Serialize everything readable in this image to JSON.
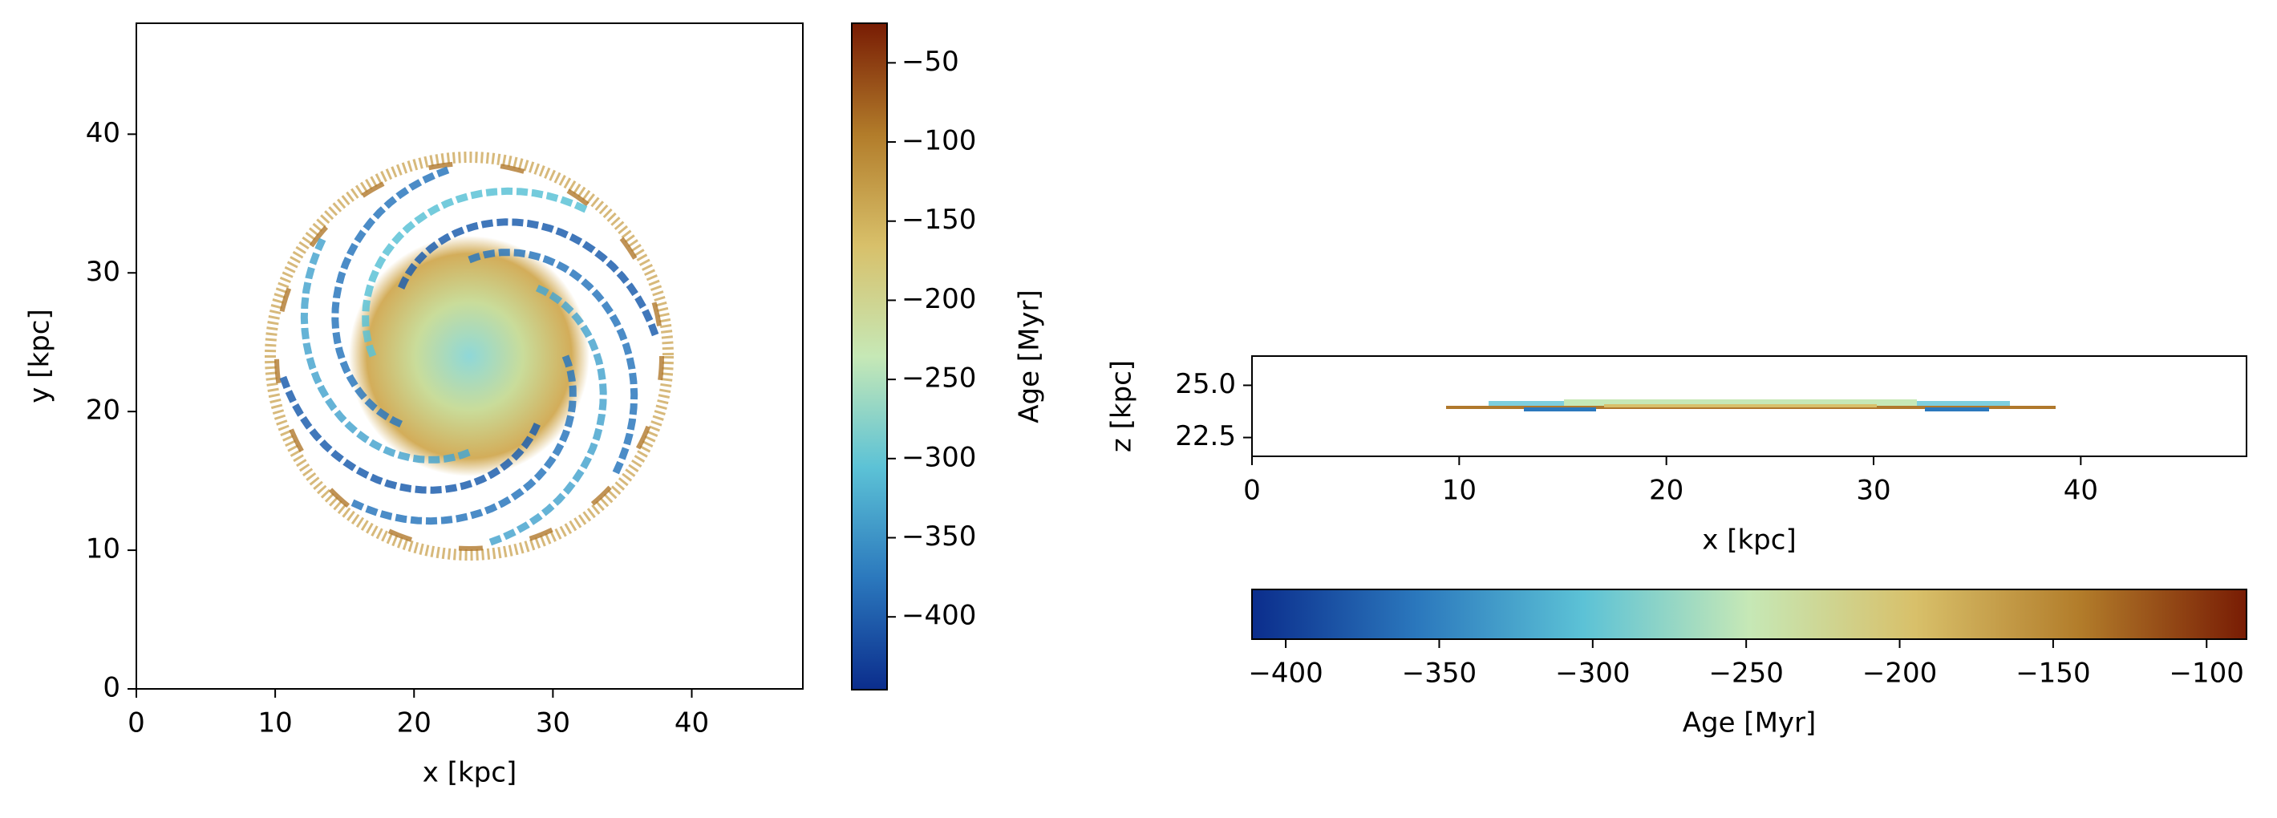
{
  "chart_data": [
    {
      "type": "image",
      "xlabel": "x [kpc]",
      "ylabel": "y [kpc]",
      "xlim": [
        0,
        48
      ],
      "ylim": [
        0,
        48
      ],
      "xticks": [
        0,
        10,
        20,
        30,
        40
      ],
      "yticks": [
        0,
        10,
        20,
        30,
        40
      ],
      "colormap": [
        "#0b2d8c",
        "#2b78bd",
        "#5cc2d6",
        "#c6e8b6",
        "#d8c06a",
        "#b27c2a",
        "#781c04"
      ],
      "colorbar": {
        "orientation": "vertical",
        "label": "Age [Myr]",
        "lim": [
          -446,
          -25
        ],
        "ticks": [
          {
            "value": -400,
            "label": "−400"
          },
          {
            "value": -350,
            "label": "−350"
          },
          {
            "value": -300,
            "label": "−300"
          },
          {
            "value": -250,
            "label": "−250"
          },
          {
            "value": -200,
            "label": "−200"
          },
          {
            "value": -150,
            "label": "−150"
          },
          {
            "value": -100,
            "label": "−100"
          },
          {
            "value": -50,
            "label": "−50"
          }
        ]
      }
    },
    {
      "type": "image",
      "xlabel": "x [kpc]",
      "ylabel": "z [kpc]",
      "xlim": [
        0,
        48
      ],
      "ylim": [
        21.6,
        26.4
      ],
      "xticks": [
        0,
        10,
        20,
        30,
        40
      ],
      "yticks": [
        22.5,
        {
          "value": 25,
          "label": "25.0"
        }
      ],
      "colormap": [
        "#0b2d8c",
        "#2b78bd",
        "#5cc2d6",
        "#c6e8b6",
        "#d8c06a",
        "#b27c2a",
        "#781c04"
      ],
      "colorbar": {
        "orientation": "horizontal",
        "label": "Age [Myr]",
        "lim": [
          -411,
          -87
        ],
        "ticks": [
          {
            "value": -400,
            "label": "−400"
          },
          {
            "value": -350,
            "label": "−350"
          },
          {
            "value": -300,
            "label": "−300"
          },
          {
            "value": -250,
            "label": "−250"
          },
          {
            "value": -200,
            "label": "−200"
          },
          {
            "value": -150,
            "label": "−150"
          },
          {
            "value": -100,
            "label": "−100"
          }
        ]
      }
    }
  ]
}
